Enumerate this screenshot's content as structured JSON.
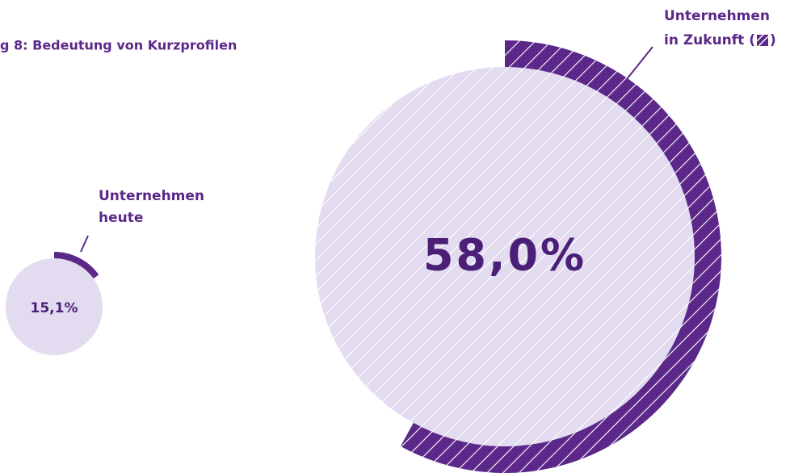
{
  "chart_data": {
    "type": "radial-progress",
    "title": "g 8: Bedeutung von Kurzprofilen",
    "label_lines": [
      [
        "Unternehmen",
        "heute"
      ],
      [
        "Unternehmen",
        "in Zukunft (",
        ")"
      ]
    ],
    "values": [
      15.1,
      58.0
    ],
    "value_labels": [
      "15,1%",
      "58,0%"
    ],
    "ylim": [
      0,
      100
    ],
    "arc_color": "#5b2889",
    "circle_color": "#e3dbef",
    "text_color": "#4b1f78"
  }
}
